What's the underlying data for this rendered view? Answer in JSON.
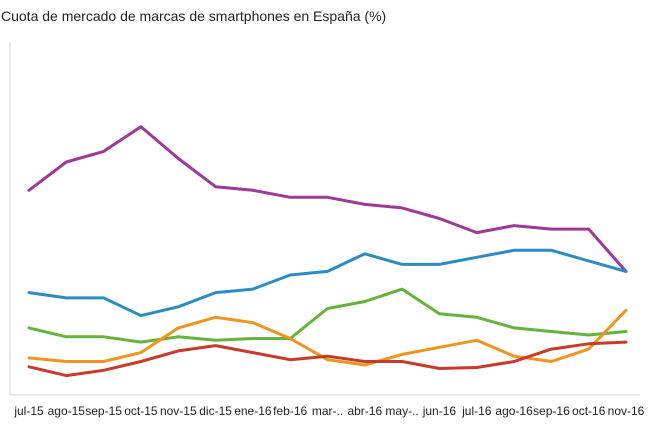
{
  "chart_data": {
    "type": "line",
    "title": "Cuota de mercado de marcas de smartphones en España (%)",
    "xlabel": "",
    "ylabel": "",
    "ylim": [
      0,
      10
    ],
    "grid": false,
    "legend": "none",
    "categories": [
      "jul-15",
      "ago-15",
      "sep-15",
      "oct-15",
      "nov-15",
      "dic-15",
      "ene-16",
      "feb-16",
      "mar-..",
      "abr-16",
      "may-..",
      "jun-16",
      "jul-16",
      "ago-16",
      "sep-16",
      "oct-16",
      "nov-16"
    ],
    "series": [
      {
        "color": "#9b3a98",
        "values": [
          5.8,
          6.6,
          6.9,
          7.6,
          6.7,
          5.9,
          5.8,
          5.6,
          5.6,
          5.4,
          5.3,
          5.0,
          4.6,
          4.8,
          4.7,
          4.7,
          3.5
        ]
      },
      {
        "color": "#2d8bc4",
        "values": [
          2.9,
          2.75,
          2.75,
          2.25,
          2.5,
          2.9,
          3.0,
          3.4,
          3.5,
          4.0,
          3.7,
          3.7,
          3.9,
          4.1,
          4.1,
          3.8,
          3.5
        ]
      },
      {
        "color": "#63b43a",
        "values": [
          1.9,
          1.65,
          1.65,
          1.5,
          1.65,
          1.55,
          1.6,
          1.6,
          2.45,
          2.65,
          3.0,
          2.3,
          2.2,
          1.9,
          1.8,
          1.7,
          1.8
        ]
      },
      {
        "color": "#f0941e",
        "values": [
          1.05,
          0.95,
          0.95,
          1.2,
          1.9,
          2.2,
          2.05,
          1.6,
          1.0,
          0.85,
          1.15,
          1.35,
          1.55,
          1.1,
          0.95,
          1.3,
          2.4
        ]
      },
      {
        "color": "#c83a2a",
        "values": [
          0.8,
          0.55,
          0.7,
          0.95,
          1.25,
          1.4,
          1.2,
          1.0,
          1.1,
          0.95,
          0.95,
          0.75,
          0.78,
          0.95,
          1.3,
          1.45,
          1.5
        ]
      }
    ]
  }
}
